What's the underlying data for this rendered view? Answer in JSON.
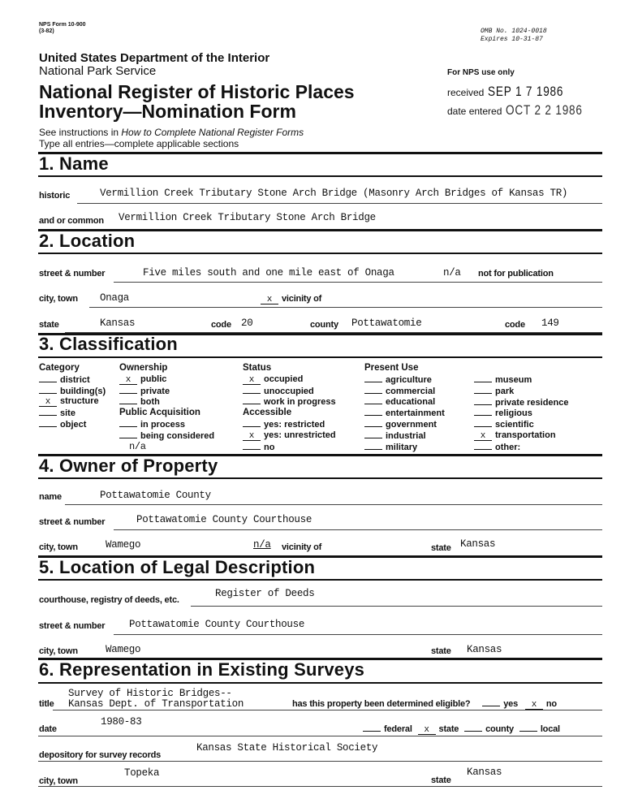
{
  "header": {
    "form_number": "NPS Form 10-900",
    "form_revision": "(3-82)",
    "omb_number": "OMB No. 1024-0018",
    "expires": "Expires 10-31-87",
    "department": "United States Department of the Interior",
    "agency": "National Park Service",
    "title_line1": "National Register of Historic Places",
    "title_line2": "Inventory—Nomination Form",
    "instructions_prefix": "See instructions in ",
    "instructions_italic": "How to Complete National Register Forms",
    "type_all": "Type all entries—complete applicable sections",
    "nps_use_only": "For NPS use only",
    "received_label": "received",
    "received_value": "SEP 1 7 1986",
    "date_entered_label": "date entered",
    "date_entered_value": "OCT 2 2 1986"
  },
  "s1": {
    "heading": "1. Name",
    "historic_label": "historic",
    "historic_value": "Vermillion Creek Tributary Stone Arch Bridge (Masonry Arch Bridges of Kansas TR)",
    "common_label": "and or common",
    "common_value": "Vermillion Creek Tributary Stone Arch Bridge"
  },
  "s2": {
    "heading": "2. Location",
    "street_label": "street & number",
    "street_value": "Five miles south and one mile east of Onaga",
    "nfp_value": "n/a",
    "nfp_label": "not for publication",
    "city_label": "city, town",
    "city_value": "Onaga",
    "vicinity_mark": "x",
    "vicinity_label": "vicinity of",
    "state_label": "state",
    "state_value": "Kansas",
    "code_label": "code",
    "code_value": "20",
    "county_label": "county",
    "county_value": "Pottawatomie",
    "code2_label": "code",
    "code2_value": "149"
  },
  "s3": {
    "heading": "3. Classification",
    "category": {
      "title": "Category",
      "items": [
        {
          "mark": "",
          "label": "district"
        },
        {
          "mark": "",
          "label": "building(s)"
        },
        {
          "mark": "x",
          "label": "structure"
        },
        {
          "mark": "",
          "label": "site"
        },
        {
          "mark": "",
          "label": "object"
        }
      ]
    },
    "ownership": {
      "title": "Ownership",
      "items": [
        {
          "mark": "x",
          "label": "public"
        },
        {
          "mark": "",
          "label": "private"
        },
        {
          "mark": "",
          "label": "both"
        }
      ]
    },
    "acquisition": {
      "title": "Public Acquisition",
      "items": [
        {
          "mark": "",
          "label": "in process"
        },
        {
          "mark": "",
          "label": "being considered"
        }
      ],
      "note": "n/a"
    },
    "status": {
      "title": "Status",
      "items": [
        {
          "mark": "x",
          "label": "occupied"
        },
        {
          "mark": "",
          "label": "unoccupied"
        },
        {
          "mark": "",
          "label": "work in progress"
        }
      ]
    },
    "accessible": {
      "title": "Accessible",
      "items": [
        {
          "mark": "",
          "label": "yes: restricted"
        },
        {
          "mark": "x",
          "label": "yes: unrestricted"
        },
        {
          "mark": "",
          "label": "no"
        }
      ]
    },
    "present_use": {
      "title": "Present Use",
      "col1": [
        {
          "mark": "",
          "label": "agriculture"
        },
        {
          "mark": "",
          "label": "commercial"
        },
        {
          "mark": "",
          "label": "educational"
        },
        {
          "mark": "",
          "label": "entertainment"
        },
        {
          "mark": "",
          "label": "government"
        },
        {
          "mark": "",
          "label": "industrial"
        },
        {
          "mark": "",
          "label": "military"
        }
      ],
      "col2": [
        {
          "mark": "",
          "label": "museum"
        },
        {
          "mark": "",
          "label": "park"
        },
        {
          "mark": "",
          "label": "private residence"
        },
        {
          "mark": "",
          "label": "religious"
        },
        {
          "mark": "",
          "label": "scientific"
        },
        {
          "mark": "x",
          "label": "transportation"
        },
        {
          "mark": "",
          "label": "other:"
        }
      ]
    }
  },
  "s4": {
    "heading": "4. Owner of Property",
    "name_label": "name",
    "name_value": "Pottawatomie County",
    "street_label": "street & number",
    "street_value": "Pottawatomie County Courthouse",
    "city_label": "city, town",
    "city_value": "Wamego",
    "vicinity_value": "n/a",
    "vicinity_label": "vicinity of",
    "state_label": "state",
    "state_value": "Kansas"
  },
  "s5": {
    "heading": "5. Location of Legal Description",
    "courthouse_label": "courthouse, registry of deeds, etc.",
    "courthouse_value": "Register of Deeds",
    "street_label": "street & number",
    "street_value": "Pottawatomie County Courthouse",
    "city_label": "city, town",
    "city_value": "Wamego",
    "state_label": "state",
    "state_value": "Kansas"
  },
  "s6": {
    "heading": "6. Representation in Existing Surveys",
    "title_label": "title",
    "title_value_line1": "Survey of Historic Bridges--",
    "title_value_line2": "Kansas Dept. of Transportation",
    "eligible_label": "has this property been determined eligible?",
    "yes_mark": "",
    "yes_label": "yes",
    "no_mark": "x",
    "no_label": "no",
    "date_label": "date",
    "date_value": "1980-83",
    "levels": [
      {
        "mark": "",
        "label": "federal"
      },
      {
        "mark": "x",
        "label": "state"
      },
      {
        "mark": "",
        "label": "county"
      },
      {
        "mark": "",
        "label": "local"
      }
    ],
    "depository_label": "depository for survey records",
    "depository_value": "Kansas State Historical Society",
    "city_label": "city, town",
    "city_value": "Topeka",
    "state_label": "state",
    "state_value": "Kansas"
  }
}
